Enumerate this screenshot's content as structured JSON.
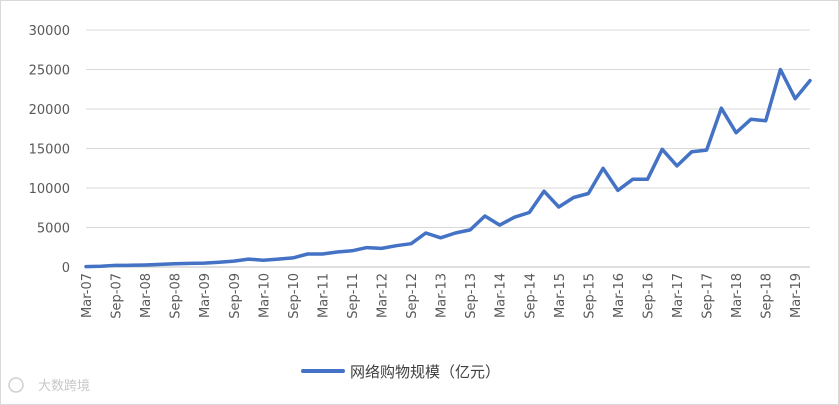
{
  "watermark": "大数跨境",
  "chart_data": {
    "type": "line",
    "title": "",
    "xlabel": "",
    "ylabel": "",
    "ylim": [
      0,
      30000
    ],
    "yticks": [
      0,
      5000,
      10000,
      15000,
      20000,
      25000,
      30000
    ],
    "grid": true,
    "legend_position": "bottom",
    "color": "#4472C4",
    "x": [
      "Mar-07",
      "Jun-07",
      "Sep-07",
      "Dec-07",
      "Mar-08",
      "Jun-08",
      "Sep-08",
      "Dec-08",
      "Mar-09",
      "Jun-09",
      "Sep-09",
      "Dec-09",
      "Mar-10",
      "Jun-10",
      "Sep-10",
      "Dec-10",
      "Mar-11",
      "Jun-11",
      "Sep-11",
      "Dec-11",
      "Mar-12",
      "Jun-12",
      "Sep-12",
      "Dec-12",
      "Mar-13",
      "Jun-13",
      "Sep-13",
      "Dec-13",
      "Mar-14",
      "Jun-14",
      "Sep-14",
      "Dec-14",
      "Mar-15",
      "Jun-15",
      "Sep-15",
      "Dec-15",
      "Mar-16",
      "Jun-16",
      "Sep-16",
      "Dec-16",
      "Mar-17",
      "Jun-17",
      "Sep-17",
      "Dec-17",
      "Mar-18",
      "Jun-18",
      "Sep-18",
      "Dec-18",
      "Mar-19",
      "Jun-19"
    ],
    "xtick_labels": [
      "Mar-07",
      "Sep-07",
      "Mar-08",
      "Sep-08",
      "Mar-09",
      "Sep-09",
      "Mar-10",
      "Sep-10",
      "Mar-11",
      "Sep-11",
      "Mar-12",
      "Sep-12",
      "Mar-13",
      "Sep-13",
      "Mar-14",
      "Sep-14",
      "Mar-15",
      "Sep-15",
      "Mar-16",
      "Sep-16",
      "Mar-17",
      "Sep-17",
      "Mar-18",
      "Sep-18",
      "Mar-19"
    ],
    "series": [
      {
        "name": "网络购物规模（亿元）",
        "values": [
          50,
          100,
          200,
          220,
          250,
          330,
          400,
          450,
          500,
          600,
          750,
          1000,
          850,
          1000,
          1150,
          1650,
          1650,
          1900,
          2050,
          2450,
          2350,
          2700,
          2950,
          4300,
          3700,
          4300,
          4700,
          6450,
          5300,
          6300,
          6900,
          9600,
          7600,
          8800,
          9300,
          12500,
          9700,
          11100,
          11100,
          14900,
          12800,
          14600,
          14800,
          20100,
          17000,
          18700,
          18500,
          25000,
          21300,
          23600
        ]
      }
    ]
  }
}
